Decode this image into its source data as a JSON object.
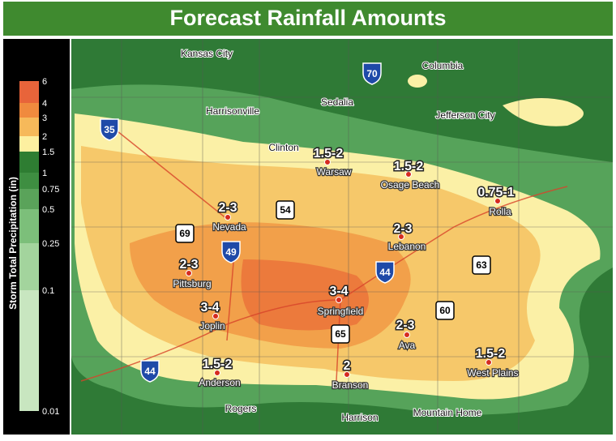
{
  "header": {
    "title": "Forecast Rainfall Amounts"
  },
  "legend": {
    "title": "Storm Total Precipitation (in)",
    "ticks": [
      "6",
      "4",
      "3",
      "2",
      "1.5",
      "1",
      "0.75",
      "0.5",
      "0.25",
      "0.1",
      "0.01"
    ]
  },
  "forecast_places": [
    {
      "name": "Warsaw",
      "amount": "1.5-2"
    },
    {
      "name": "Osage Beach",
      "amount": "1.5-2"
    },
    {
      "name": "Rolla",
      "amount": "0.75-1"
    },
    {
      "name": "Nevada",
      "amount": "2-3"
    },
    {
      "name": "Lebanon",
      "amount": "2-3"
    },
    {
      "name": "Pittsburg",
      "amount": "2-3"
    },
    {
      "name": "Joplin",
      "amount": "3-4"
    },
    {
      "name": "Springfield",
      "amount": "3-4"
    },
    {
      "name": "Ava",
      "amount": "2-3"
    },
    {
      "name": "Anderson",
      "amount": "1.5-2"
    },
    {
      "name": "Branson",
      "amount": "2"
    },
    {
      "name": "West Plains",
      "amount": "1.5-2"
    }
  ],
  "other_places": [
    "Kansas City",
    "Columbia",
    "Harrisonville",
    "Sedalia",
    "Jefferson City",
    "Clinton",
    "Rogers",
    "Harrison",
    "Mountain Home"
  ],
  "highways": [
    "70",
    "35",
    "44",
    "44",
    "49",
    "69",
    "54",
    "63",
    "60",
    "65"
  ]
}
